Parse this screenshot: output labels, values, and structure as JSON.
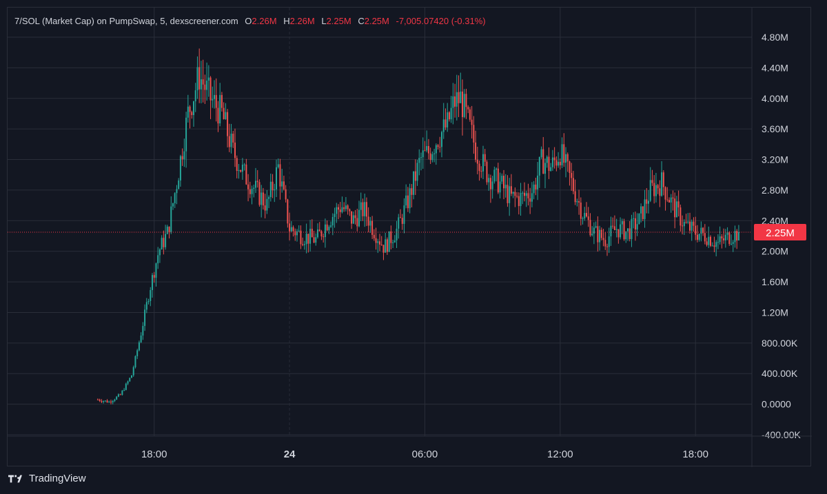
{
  "legend": {
    "symbol": "7/SOL (Market Cap) on PumpSwap, 5, dexscreener.com",
    "open_key": "O",
    "open": "2.26M",
    "high_key": "H",
    "high": "2.26M",
    "low_key": "L",
    "low": "2.25M",
    "close_key": "C",
    "close": "2.25M",
    "change": "-7,005.07420 (-0.31%)"
  },
  "branding": {
    "name": "TradingView",
    "logo_icon": "tradingview-logo-icon"
  },
  "colors": {
    "background": "#131722",
    "grid": "#2a2e39",
    "up": "#26a69a",
    "down": "#ef5350",
    "price_line": "#f23645",
    "axis_text": "#d1d4dc"
  },
  "chart_data": {
    "type": "candlestick",
    "title": "",
    "current_price_label": "2.25M",
    "current_price": 2250000,
    "ylim": [
      -400000,
      4800000
    ],
    "y_ticks": [
      {
        "value": 4800000,
        "label": "4.80M"
      },
      {
        "value": 4400000,
        "label": "4.40M"
      },
      {
        "value": 4000000,
        "label": "4.00M"
      },
      {
        "value": 3600000,
        "label": "3.60M"
      },
      {
        "value": 3200000,
        "label": "3.20M"
      },
      {
        "value": 2800000,
        "label": "2.80M"
      },
      {
        "value": 2400000,
        "label": "2.40M"
      },
      {
        "value": 2000000,
        "label": "2.00M"
      },
      {
        "value": 1600000,
        "label": "1.60M"
      },
      {
        "value": 1200000,
        "label": "1.20M"
      },
      {
        "value": 800000,
        "label": "800.00K"
      },
      {
        "value": 400000,
        "label": "400.00K"
      },
      {
        "value": 0,
        "label": "0.0000"
      },
      {
        "value": -400000,
        "label": "-400.00K"
      }
    ],
    "xlim_hours": [
      11.5,
      44.5
    ],
    "x_ticks": [
      {
        "hour": 18,
        "label": "18:00"
      },
      {
        "hour": 24,
        "label": "24",
        "day_boundary": true
      },
      {
        "hour": 30,
        "label": "06:00"
      },
      {
        "hour": 36,
        "label": "12:00"
      },
      {
        "hour": 42,
        "label": "18:00"
      }
    ],
    "price_anchors": [
      [
        15.5,
        60000
      ],
      [
        16.0,
        30000
      ],
      [
        16.5,
        120000
      ],
      [
        17.0,
        380000
      ],
      [
        17.4,
        900000
      ],
      [
        17.8,
        1500000
      ],
      [
        18.2,
        2000000
      ],
      [
        18.6,
        2250000
      ],
      [
        19.0,
        2900000
      ],
      [
        19.5,
        3800000
      ],
      [
        20.0,
        4300000
      ],
      [
        20.5,
        4000000
      ],
      [
        21.0,
        3800000
      ],
      [
        21.5,
        3300000
      ],
      [
        22.0,
        3000000
      ],
      [
        22.5,
        2800000
      ],
      [
        23.0,
        2600000
      ],
      [
        23.5,
        3100000
      ],
      [
        24.0,
        2300000
      ],
      [
        24.6,
        2200000
      ],
      [
        25.2,
        2150000
      ],
      [
        25.7,
        2400000
      ],
      [
        26.3,
        2600000
      ],
      [
        26.8,
        2400000
      ],
      [
        27.3,
        2550000
      ],
      [
        27.7,
        2300000
      ],
      [
        28.2,
        2050000
      ],
      [
        28.8,
        2300000
      ],
      [
        29.3,
        2700000
      ],
      [
        29.8,
        3200000
      ],
      [
        30.2,
        3300000
      ],
      [
        30.6,
        3500000
      ],
      [
        31.0,
        3650000
      ],
      [
        31.3,
        3950000
      ],
      [
        31.6,
        4000000
      ],
      [
        31.9,
        3700000
      ],
      [
        32.3,
        3300000
      ],
      [
        32.8,
        3000000
      ],
      [
        33.3,
        2900000
      ],
      [
        33.8,
        2700000
      ],
      [
        34.3,
        2700000
      ],
      [
        34.8,
        2800000
      ],
      [
        35.2,
        3200000
      ],
      [
        35.6,
        3100000
      ],
      [
        36.0,
        3300000
      ],
      [
        36.5,
        2900000
      ],
      [
        37.0,
        2500000
      ],
      [
        37.5,
        2250000
      ],
      [
        38.0,
        2150000
      ],
      [
        38.5,
        2300000
      ],
      [
        39.0,
        2250000
      ],
      [
        39.5,
        2400000
      ],
      [
        40.0,
        2800000
      ],
      [
        40.5,
        2900000
      ],
      [
        41.0,
        2600000
      ],
      [
        41.5,
        2350000
      ],
      [
        42.0,
        2250000
      ],
      [
        42.5,
        2200000
      ],
      [
        43.0,
        2100000
      ],
      [
        43.5,
        2200000
      ],
      [
        44.0,
        2250000
      ]
    ],
    "candle_interval_minutes": 5
  }
}
